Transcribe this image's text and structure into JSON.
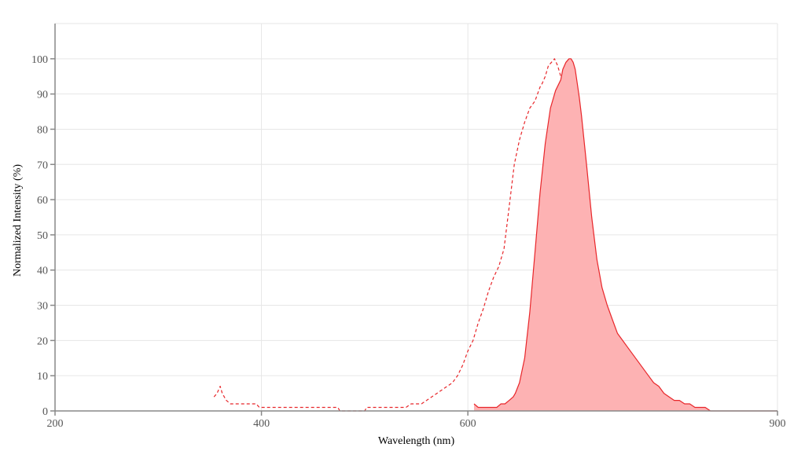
{
  "chart_data": {
    "type": "area",
    "title": "",
    "xlabel": "Wavelength (nm)",
    "ylabel": "Normalized Intensity (%)",
    "xlim": [
      200,
      900
    ],
    "ylim": [
      0,
      110
    ],
    "grid": true,
    "legend": "none",
    "x_ticks": [
      200,
      400,
      600,
      900
    ],
    "y_ticks": [
      0,
      10,
      20,
      30,
      40,
      50,
      60,
      70,
      80,
      90,
      100
    ],
    "colors": {
      "line": "#e8262a",
      "fill": "#fdb2b3",
      "grid": "#e6e6e6",
      "axis": "#888888"
    },
    "series": [
      {
        "style": "dashed",
        "filled": false,
        "x": [
          354,
          357,
          360,
          362,
          366,
          370,
          375,
          380,
          385,
          390,
          395,
          398,
          400,
          410,
          420,
          440,
          460,
          474,
          476,
          485,
          490,
          495,
          500,
          502,
          505,
          510,
          520,
          530,
          540,
          545,
          550,
          555,
          560,
          565,
          570,
          575,
          580,
          585,
          590,
          595,
          600,
          605,
          610,
          615,
          620,
          625,
          630,
          635,
          640,
          645,
          650,
          655,
          660,
          665,
          670,
          672,
          675,
          678,
          681,
          684,
          687,
          690,
          693,
          696,
          699,
          702,
          705,
          708,
          711,
          714,
          717,
          720,
          723
        ],
        "y": [
          4,
          5,
          7,
          5,
          3,
          2,
          2,
          2,
          2,
          2,
          2,
          1,
          1,
          1,
          1,
          1,
          1,
          1,
          0,
          0,
          0,
          0,
          0,
          1,
          1,
          1,
          1,
          1,
          1,
          2,
          2,
          2,
          3,
          4,
          5,
          6,
          7,
          8,
          10,
          13,
          17,
          20,
          25,
          29,
          34,
          38,
          41,
          46,
          58,
          70,
          77,
          82,
          86,
          88,
          92,
          93,
          95,
          98,
          99,
          100,
          98,
          95,
          90,
          82,
          72,
          60,
          48,
          38,
          30,
          25,
          20,
          17,
          15
        ]
      },
      {
        "style": "solid",
        "filled": true,
        "x": [
          606,
          610,
          620,
          628,
          632,
          636,
          640,
          644,
          646,
          650,
          655,
          660,
          665,
          670,
          675,
          680,
          685,
          690,
          692,
          695,
          698,
          700,
          702,
          704,
          706,
          708,
          710,
          715,
          720,
          725,
          730,
          735,
          740,
          745,
          750,
          755,
          760,
          765,
          770,
          775,
          780,
          785,
          790,
          795,
          800,
          805,
          810,
          815,
          820,
          825,
          830,
          835,
          840,
          845,
          850,
          855,
          860,
          865,
          870,
          875,
          880,
          885,
          890,
          895,
          900
        ],
        "y": [
          2,
          1,
          1,
          1,
          2,
          2,
          3,
          4,
          5,
          8,
          15,
          28,
          45,
          62,
          76,
          86,
          91,
          94,
          97,
          99,
          100,
          100,
          99,
          97,
          93,
          89,
          84,
          70,
          55,
          43,
          35,
          30,
          26,
          22,
          20,
          18,
          16,
          14,
          12,
          10,
          8,
          7,
          5,
          4,
          3,
          3,
          2,
          2,
          1,
          1,
          1,
          0,
          0,
          0,
          0,
          0,
          0,
          0,
          0,
          0,
          0,
          0,
          0,
          0,
          0
        ]
      }
    ]
  }
}
